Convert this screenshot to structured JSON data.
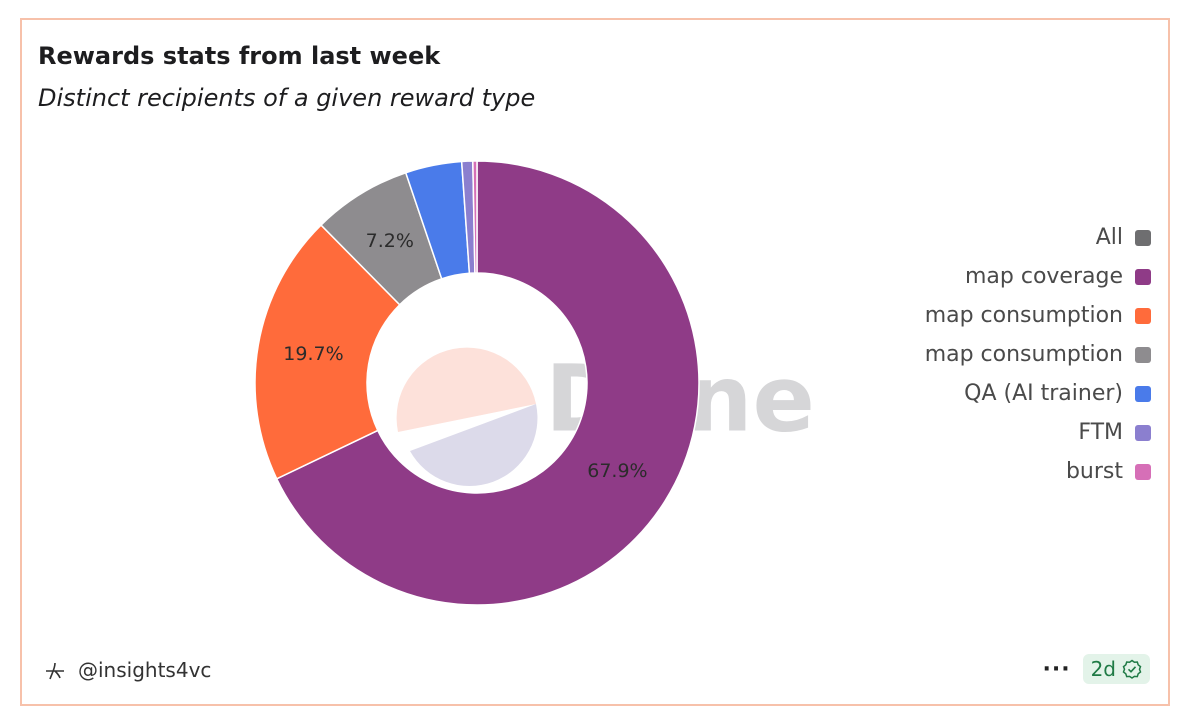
{
  "chart_data": {
    "type": "donut",
    "title": "Rewards stats from last week",
    "subtitle": "Distinct recipients of a given reward type",
    "watermark": "Dune",
    "series": [
      {
        "name": "All",
        "color": "#6e6e70",
        "values": [
          null
        ]
      },
      {
        "name": "map coverage",
        "color": "#8f3b87",
        "values": [
          67.9
        ]
      },
      {
        "name": "map consumption",
        "color": "#ff6b3b",
        "values": [
          19.7
        ]
      },
      {
        "name": "map consumption",
        "color": "#8e8c8f",
        "values": [
          7.2
        ]
      },
      {
        "name": "QA (AI trainer)",
        "color": "#4a7bea",
        "values": [
          4.1
        ]
      },
      {
        "name": "FTM",
        "color": "#8b7fcf",
        "values": [
          0.8
        ]
      },
      {
        "name": "burst",
        "color": "#d66fb7",
        "values": [
          0.3
        ]
      }
    ],
    "value_labels": [
      null,
      "67.9%",
      "19.7%",
      "7.2%",
      null,
      null,
      null
    ],
    "legend": "right"
  },
  "footer": {
    "author": "@insights4vc",
    "age": "2d"
  }
}
